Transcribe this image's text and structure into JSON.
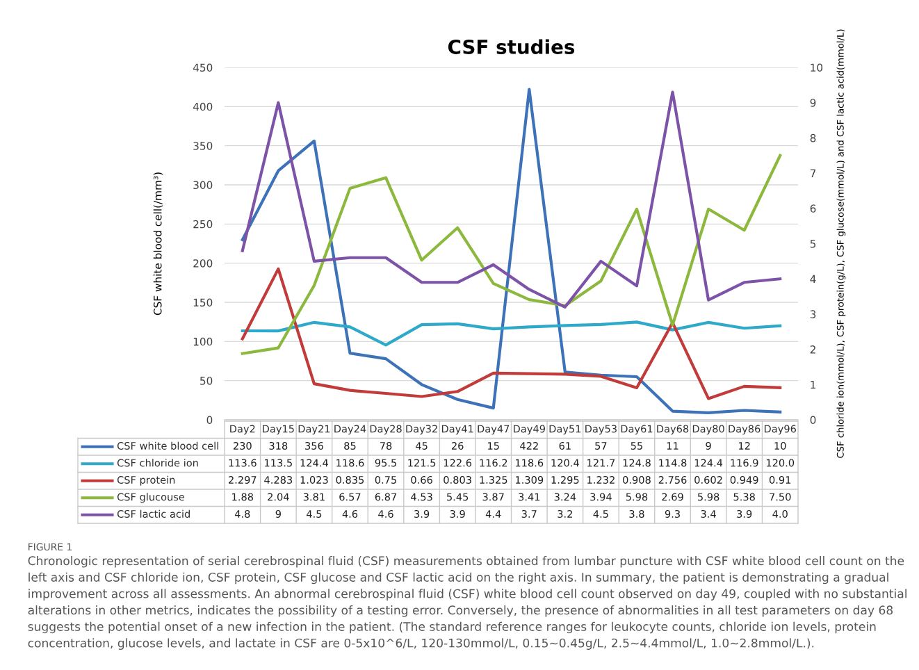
{
  "chart_data": {
    "type": "line",
    "title": "CSF studies",
    "ylabel": "CSF white blood cell(/mm³)",
    "y2label": "CSF chloride ion(mmol/L), CSF protein(g/L), CSF glucose(mmol/L) and CSF lactic acid(mmol/L)",
    "categories": [
      "Day2",
      "Day15",
      "Day21",
      "Day24",
      "Day28",
      "Day32",
      "Day41",
      "Day47",
      "Day49",
      "Day51",
      "Day53",
      "Day61",
      "Day68",
      "Day80",
      "Day86",
      "Day96"
    ],
    "series": [
      {
        "name": "CSF white blood cell",
        "color": "#3d72b8",
        "values": [
          230,
          318,
          356,
          85,
          78,
          45,
          26,
          15,
          422,
          61,
          57,
          55,
          11,
          9,
          12,
          10
        ],
        "value_labels": [
          "230",
          "318",
          "356",
          "85",
          "78",
          "45",
          "26",
          "15",
          "422",
          "61",
          "57",
          "55",
          "11",
          "9",
          "12",
          "10"
        ]
      },
      {
        "name": "CSF chloride ion",
        "color": "#2fa9c9",
        "values": [
          113.6,
          113.5,
          124.4,
          118.6,
          95.5,
          121.5,
          122.6,
          116.2,
          118.6,
          120.4,
          121.7,
          124.8,
          114.8,
          124.4,
          116.9,
          120.0
        ],
        "value_labels": [
          "113.6",
          "113.5",
          "124.4",
          "118.6",
          "95.5",
          "121.5",
          "122.6",
          "116.2",
          "118.6",
          "120.4",
          "121.7",
          "124.8",
          "114.8",
          "124.4",
          "116.9",
          "120.0"
        ]
      },
      {
        "name": "CSF protein",
        "color": "#c23b3b",
        "axis": "y2",
        "values": [
          2.297,
          4.283,
          1.023,
          0.835,
          0.75,
          0.66,
          0.803,
          1.325,
          1.309,
          1.295,
          1.232,
          0.908,
          2.756,
          0.602,
          0.949,
          0.91
        ],
        "value_labels": [
          "2.297",
          "4.283",
          "1.023",
          "0.835",
          "0.75",
          "0.66",
          "0.803",
          "1.325",
          "1.309",
          "1.295",
          "1.232",
          "0.908",
          "2.756",
          "0.602",
          "0.949",
          "0.91"
        ]
      },
      {
        "name": "CSF glucouse",
        "color": "#8cb83e",
        "axis": "y2",
        "values": [
          1.88,
          2.04,
          3.81,
          6.57,
          6.87,
          4.53,
          5.45,
          3.87,
          3.41,
          3.24,
          3.94,
          5.98,
          2.69,
          5.98,
          5.38,
          7.5
        ],
        "value_labels": [
          "1.88",
          "2.04",
          "3.81",
          "6.57",
          "6.87",
          "4.53",
          "5.45",
          "3.87",
          "3.41",
          "3.24",
          "3.94",
          "5.98",
          "2.69",
          "5.98",
          "5.38",
          "7.50"
        ]
      },
      {
        "name": "CSF lactic acid",
        "color": "#7d53a8",
        "axis": "y2",
        "values": [
          4.8,
          9,
          4.5,
          4.6,
          4.6,
          3.9,
          3.9,
          4.4,
          3.7,
          3.2,
          4.5,
          3.8,
          9.3,
          3.4,
          3.9,
          4.0
        ],
        "value_labels": [
          "4.8",
          "9",
          "4.5",
          "4.6",
          "4.6",
          "3.9",
          "3.9",
          "4.4",
          "3.7",
          "3.2",
          "4.5",
          "3.8",
          "9.3",
          "3.4",
          "3.9",
          "4.0"
        ]
      }
    ],
    "ylim": [
      0,
      450
    ],
    "yticks": [
      0,
      50,
      100,
      150,
      200,
      250,
      300,
      350,
      400,
      450
    ],
    "y2lim": [
      0,
      10
    ],
    "y2ticks": [
      0,
      1,
      2,
      3,
      4,
      5,
      6,
      7,
      8,
      9,
      10
    ],
    "tick_labels": "y",
    "grid": "y",
    "legend": "bottom left",
    "marker": "none",
    "line_style": "solid",
    "annotations": [
      "FIGURE 1",
      "Chronologic representation of serial cerebrospinal fluid (CSF) measurements obtained from lumbar puncture with CSF white blood cell count on the left axis and CSF chloride ion, CSF protein, CSF glucose and CSF lactic acid on the right axis. In summary, the patient is demonstrating a gradual improvement across all assessments. An abnormal cerebrospinal fluid (CSF) white blood cell count observed on day 49, coupled with no substantial alterations in other metrics, indicates the possibility of a testing error. Conversely, the presence of abnormalities in all test parameters on day 68 suggests the potential onset of a new infection in the patient. (The standard reference ranges for leukocyte counts, chloride ion levels, protein concentration, glucose levels, and lactate in CSF are 0-5x10^6/L, 120-130mmol/L, 0.15~0.45g/L, 2.5~4.4mmol/L, 1.0~2.8mmol/L.)."
    ]
  }
}
